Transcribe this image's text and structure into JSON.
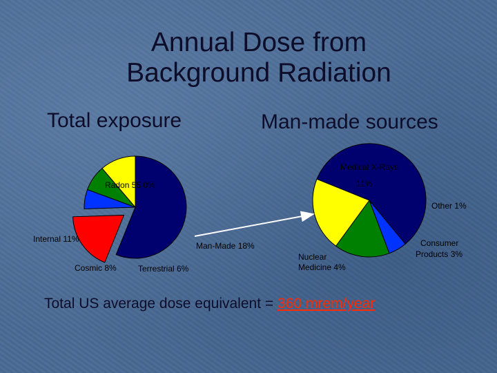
{
  "slide": {
    "title_line1": "Annual Dose from",
    "title_line2": "Background Radiation",
    "subtitle_left": "Total exposure",
    "subtitle_right": "Man-made sources",
    "footer_prefix": "Total US average dose equivalent = ",
    "footer_highlight": "360 mrem/year"
  },
  "chart_data": [
    {
      "type": "pie",
      "title": "Total exposure",
      "slices": [
        {
          "label": "Radon 55.0%",
          "value": 55.0,
          "color": "#00006e"
        },
        {
          "label": "Man-Made 18%",
          "value": 18,
          "color": "#ff0000",
          "exploded": true
        },
        {
          "label": "Terrestrial 6%",
          "value": 6,
          "color": "#0033ff"
        },
        {
          "label": "Cosmic 8%",
          "value": 8,
          "color": "#008000"
        },
        {
          "label": "Internal 11%",
          "value": 11,
          "color": "#ffff00"
        }
      ]
    },
    {
      "type": "pie",
      "title": "Man-made sources",
      "slices": [
        {
          "label": "Medical X-Rays",
          "value_label": "11%",
          "value": 11,
          "color": "#00006e"
        },
        {
          "label": "Other 1%",
          "value": 1,
          "color": "#0033ff"
        },
        {
          "label": "Consumer Products 3%",
          "value": 3,
          "color": "#008000"
        },
        {
          "label": "Nuclear Medicine 4%",
          "value": 4,
          "color": "#ffff00"
        }
      ]
    }
  ]
}
